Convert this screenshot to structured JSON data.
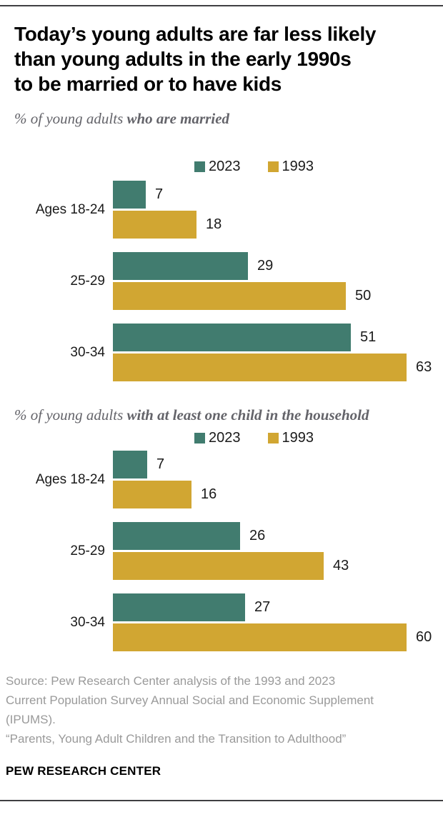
{
  "page": {
    "brand": "PEW RESEARCH CENTER"
  },
  "header": {
    "title_lines": [
      "Today’s young adults are far less likely",
      "than young adults in the early 1990s",
      "to be married or to have kids"
    ]
  },
  "chart_data": [
    {
      "type": "bar",
      "orientation": "horizontal",
      "subtitle_prefix": "% of young adults ",
      "subtitle_emphasis": "who are married",
      "categories": [
        "Ages 18-24",
        "25-29",
        "30-34"
      ],
      "series": [
        {
          "name": "2023",
          "color": "#417C6F",
          "values": [
            7,
            29,
            51
          ]
        },
        {
          "name": "1993",
          "color": "#D1A632",
          "values": [
            18,
            50,
            63
          ]
        }
      ],
      "value_labels_shown": true,
      "xlim": [
        0,
        63
      ],
      "legend_position": "top",
      "grid": false
    },
    {
      "type": "bar",
      "orientation": "horizontal",
      "subtitle_prefix": "% of young adults ",
      "subtitle_emphasis": "with at least one child in the household",
      "categories": [
        "Ages 18-24",
        "25-29",
        "30-34"
      ],
      "series": [
        {
          "name": "2023",
          "color": "#417C6F",
          "values": [
            7,
            26,
            27
          ]
        },
        {
          "name": "1993",
          "color": "#D1A632",
          "values": [
            16,
            43,
            60
          ]
        }
      ],
      "value_labels_shown": true,
      "xlim": [
        0,
        60
      ],
      "legend_position": "top",
      "grid": false
    }
  ],
  "footer": {
    "source_lines": [
      "Source: Pew Research Center analysis of the 1993 and 2023",
      "Current Population Survey Annual Social and Economic Supplement",
      "(IPUMS)."
    ],
    "report_title": "“Parents, Young Adult Children and the Transition to Adulthood”"
  },
  "colors": {
    "teal": "#417C6F",
    "gold": "#D1A632",
    "subtitle_gray": "#64646A",
    "source_gray": "#9A9A9A",
    "rule": "#3F3F42"
  }
}
